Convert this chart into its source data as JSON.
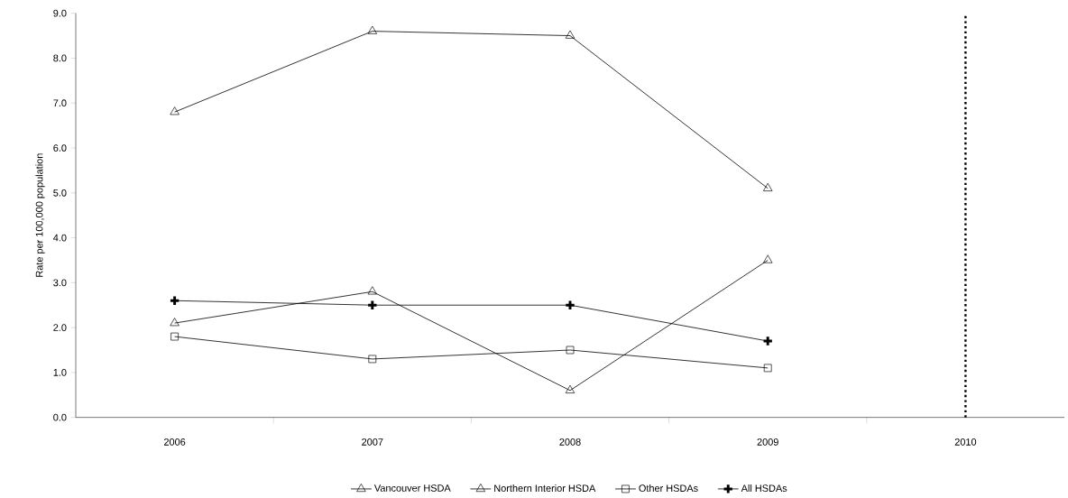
{
  "chart_data": {
    "type": "line",
    "ylabel": "Rate per 100,000 population",
    "categories": [
      "2006",
      "2007",
      "2008",
      "2009",
      "2010"
    ],
    "series": [
      {
        "name": "Vancouver HSDA",
        "color": "#000000",
        "marker": "triangle",
        "values": [
          6.8,
          8.6,
          8.5,
          5.1,
          null
        ]
      },
      {
        "name": "Northern Interior HSDA",
        "color": "#000000",
        "marker": "triangle",
        "values": [
          2.1,
          2.8,
          0.6,
          3.5,
          null
        ]
      },
      {
        "name": "Other HSDAs",
        "color": "#000000",
        "marker": "square",
        "values": [
          1.8,
          1.3,
          1.5,
          1.1,
          null
        ]
      },
      {
        "name": "All HSDAs",
        "color": "#000000",
        "marker": "cross",
        "values": [
          2.6,
          2.5,
          2.5,
          1.7,
          null
        ]
      }
    ],
    "ylim": [
      0,
      9
    ],
    "yticks": [
      {
        "value": 0,
        "label": "0.0"
      },
      {
        "value": 1,
        "label": "1.0"
      },
      {
        "value": 2,
        "label": "2.0"
      },
      {
        "value": 3,
        "label": "3.0"
      },
      {
        "value": 4,
        "label": "4.0"
      },
      {
        "value": 5,
        "label": "5.0"
      },
      {
        "value": 6,
        "label": "6.0"
      },
      {
        "value": 7,
        "label": "7.0"
      },
      {
        "value": 8,
        "label": "8.0"
      },
      {
        "value": 9,
        "label": "9.0"
      }
    ],
    "ref_lines": [
      {
        "axis": "x",
        "value": "2010",
        "color": "#000000",
        "line_style": "dotted"
      }
    ],
    "grid": false,
    "legend": "bottom",
    "line_style": "solid"
  }
}
